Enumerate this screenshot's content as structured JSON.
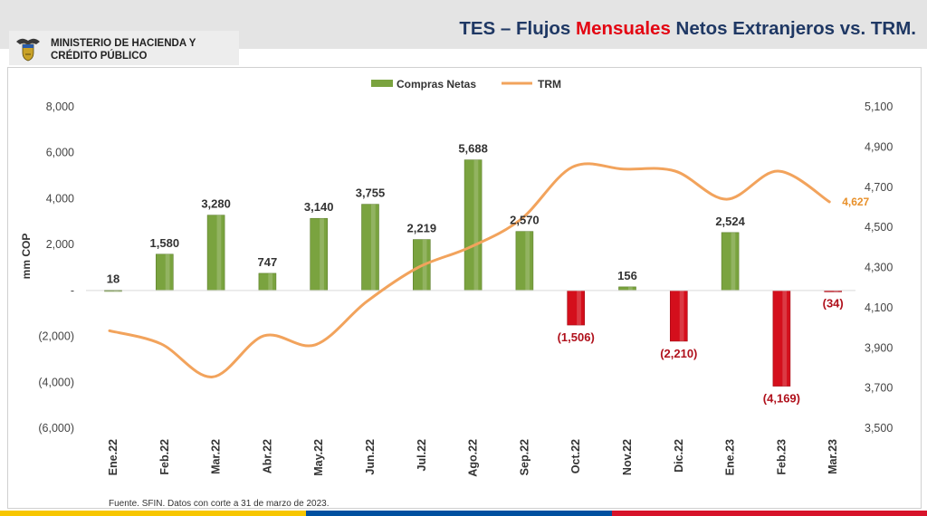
{
  "header": {
    "ministry_line1": "MINISTERIO DE HACIENDA Y",
    "ministry_line2": "CRÉDITO PÚBLICO",
    "title_part1": "TES – Flujos ",
    "title_highlight": "Mensuales",
    "title_part2": " Netos Extranjeros vs. TRM."
  },
  "colors": {
    "title": "#1f3864",
    "title_highlight": "#e30613",
    "bar_positive": "#7aa33f",
    "bar_negative": "#d40f1c",
    "label_negative": "#b0111c",
    "line": "#f2a35c",
    "line_label": "#e8902a"
  },
  "chart_data": {
    "type": "bar",
    "categories": [
      "Ene.22",
      "Feb.22",
      "Mar.22",
      "Abr.22",
      "May.22",
      "Jun.22",
      "Jul.22",
      "Ago.22",
      "Sep.22",
      "Oct.22",
      "Nov.22",
      "Dic.22",
      "Ene.23",
      "Feb.23",
      "Mar.23"
    ],
    "series": [
      {
        "name": "Compras Netas",
        "type": "bar",
        "axis": "left",
        "values": [
          18,
          1580,
          3280,
          747,
          3140,
          3755,
          2219,
          5688,
          2570,
          -1506,
          156,
          -2210,
          2524,
          -4169,
          -34
        ],
        "labels": [
          "18",
          "1,580",
          "3,280",
          "747",
          "3,140",
          "3,755",
          "2,219",
          "5,688",
          "2,570",
          "(1,506)",
          "156",
          "(2,210)",
          "2,524",
          "(4,169)",
          "(34)"
        ]
      },
      {
        "name": "TRM",
        "type": "line",
        "axis": "right",
        "values": [
          3985,
          3920,
          3755,
          3960,
          3915,
          4130,
          4300,
          4400,
          4540,
          4800,
          4790,
          4780,
          4640,
          4780,
          4627
        ],
        "end_label": "4,627"
      }
    ],
    "ylabel": "mm COP",
    "ylim": [
      -6000,
      8000
    ],
    "y_ticks": [
      {
        "v": 8000,
        "label": "8,000"
      },
      {
        "v": 6000,
        "label": "6,000"
      },
      {
        "v": 4000,
        "label": "4,000"
      },
      {
        "v": 2000,
        "label": "2,000"
      },
      {
        "v": 0,
        "label": "-"
      },
      {
        "v": -2000,
        "label": "(2,000)"
      },
      {
        "v": -4000,
        "label": "(4,000)"
      },
      {
        "v": -6000,
        "label": "(6,000)"
      }
    ],
    "y2lim": [
      3500,
      5100
    ],
    "y2_ticks": [
      {
        "v": 5100,
        "label": "5,100"
      },
      {
        "v": 4900,
        "label": "4,900"
      },
      {
        "v": 4700,
        "label": "4,700"
      },
      {
        "v": 4500,
        "label": "4,500"
      },
      {
        "v": 4300,
        "label": "4,300"
      },
      {
        "v": 4100,
        "label": "4,100"
      },
      {
        "v": 3900,
        "label": "3,900"
      },
      {
        "v": 3700,
        "label": "3,700"
      },
      {
        "v": 3500,
        "label": "3,500"
      }
    ],
    "legend_position": "top-center",
    "grid": false
  },
  "footer": {
    "source": "Fuente. SFIN. Datos con corte a 31 de marzo de 2023."
  }
}
